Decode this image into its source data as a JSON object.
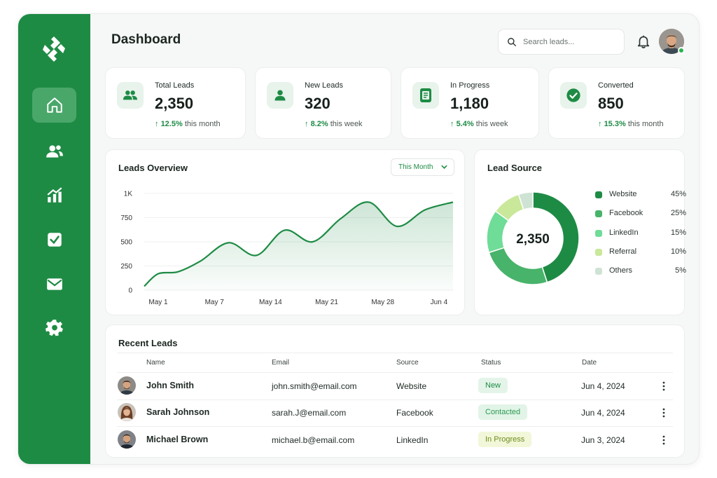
{
  "app": {
    "page_title": "Dashboard"
  },
  "header": {
    "search_placeholder": "Search leads..."
  },
  "sidebar": {
    "items": [
      {
        "name": "home",
        "icon": "home-icon",
        "active": true
      },
      {
        "name": "leads",
        "icon": "users-icon",
        "active": false
      },
      {
        "name": "analytics",
        "icon": "chart-icon",
        "active": false
      },
      {
        "name": "tasks",
        "icon": "check-square-icon",
        "active": false
      },
      {
        "name": "messages",
        "icon": "mail-icon",
        "active": false
      },
      {
        "name": "settings",
        "icon": "gear-icon",
        "active": false
      }
    ]
  },
  "stats": [
    {
      "label": "Total Leads",
      "value": "2,350",
      "delta": "12.5%",
      "period": "this month",
      "icon": "users-icon"
    },
    {
      "label": "New Leads",
      "value": "320",
      "delta": "8.2%",
      "period": "this week",
      "icon": "user-icon"
    },
    {
      "label": "In Progress",
      "value": "1,180",
      "delta": "5.4%",
      "period": "this week",
      "icon": "document-icon"
    },
    {
      "label": "Converted",
      "value": "850",
      "delta": "15.3%",
      "period": "this month",
      "icon": "check-circle-icon"
    }
  ],
  "leads_overview": {
    "title": "Leads Overview",
    "range_label": "This Month"
  },
  "lead_source": {
    "title": "Lead Source",
    "total": "2,350"
  },
  "chart_data": [
    {
      "type": "area",
      "title": "Leads Overview",
      "x_labels": [
        "May 1",
        "May 7",
        "May 14",
        "May 21",
        "May 28",
        "Jun 4"
      ],
      "y_ticks": [
        "0",
        "250",
        "500",
        "750",
        "1K"
      ],
      "ylim": [
        0,
        1000
      ],
      "series": [
        {
          "points": [
            [
              0,
              40
            ],
            [
              0.25,
              170
            ],
            [
              0.6,
              190
            ],
            [
              1,
              300
            ],
            [
              1.5,
              490
            ],
            [
              2,
              360
            ],
            [
              2.5,
              620
            ],
            [
              3,
              500
            ],
            [
              3.5,
              740
            ],
            [
              4,
              910
            ],
            [
              4.5,
              660
            ],
            [
              5,
              830
            ],
            [
              5.5,
              910
            ]
          ]
        }
      ],
      "grid": true,
      "color": "#1e8b45"
    },
    {
      "type": "pie",
      "title": "Lead Source",
      "center_label": "2,350",
      "slices": [
        {
          "label": "Website",
          "value": 45,
          "display": "45%",
          "color": "#1e8b45"
        },
        {
          "label": "Facebook",
          "value": 25,
          "display": "25%",
          "color": "#48b36a"
        },
        {
          "label": "LinkedIn",
          "value": 15,
          "display": "15%",
          "color": "#6fdc97"
        },
        {
          "label": "Referral",
          "value": 10,
          "display": "10%",
          "color": "#c9e89a"
        },
        {
          "label": "Others",
          "value": 5,
          "display": "5%",
          "color": "#cfe3d5"
        }
      ],
      "legend": "right"
    }
  ],
  "recent_leads": {
    "title": "Recent Leads",
    "columns": [
      "Name",
      "Email",
      "Source",
      "Status",
      "Date"
    ],
    "rows": [
      {
        "name": "John Smith",
        "email": "john.smith@email.com",
        "source": "Website",
        "status": "New",
        "date": "Jun 4, 2024",
        "status_color": "#1e8b45",
        "status_bg": "#e4f4e9"
      },
      {
        "name": "Sarah Johnson",
        "email": "sarah.J@email.com",
        "source": "Facebook",
        "status": "Contacted",
        "date": "Jun 4, 2024",
        "status_color": "#2a9a52",
        "status_bg": "#e2f4e7"
      },
      {
        "name": "Michael Brown",
        "email": "michael.b@email.com",
        "source": "LinkedIn",
        "status": "In Progress",
        "date": "Jun 3, 2024",
        "status_color": "#6f8a1e",
        "status_bg": "#f1f7d8"
      }
    ]
  }
}
